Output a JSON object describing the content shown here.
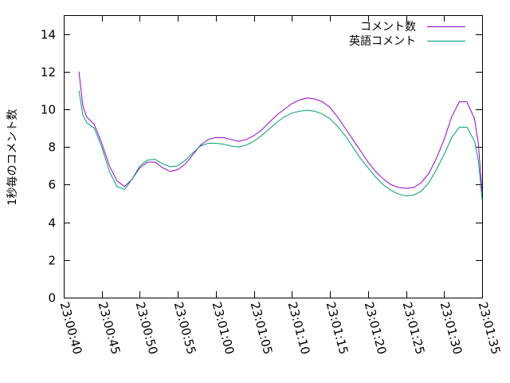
{
  "chart_data": {
    "type": "line",
    "title": "",
    "xlabel": "",
    "ylabel": "1秒毎のコメント数",
    "ylim": [
      0,
      15
    ],
    "yticks": [
      0,
      2,
      4,
      6,
      8,
      10,
      12,
      14
    ],
    "xlim": [
      "23:00:40",
      "23:01:35"
    ],
    "xticks": [
      "23:00:40",
      "23:00:45",
      "23:00:50",
      "23:00:55",
      "23:01:00",
      "23:01:05",
      "23:01:10",
      "23:01:15",
      "23:01:20",
      "23:01:25",
      "23:01:30",
      "23:01:35"
    ],
    "grid": false,
    "legend_position": "top-right",
    "series": [
      {
        "name": "コメント数",
        "color": "#9400d3",
        "x": [
          "23:00:42",
          "23:00:42.5",
          "23:00:43",
          "23:00:44",
          "23:00:45",
          "23:00:46",
          "23:00:47",
          "23:00:48",
          "23:00:49",
          "23:00:50",
          "23:00:51",
          "23:00:52",
          "23:00:53",
          "23:00:54",
          "23:00:55",
          "23:00:56",
          "23:00:57",
          "23:00:58",
          "23:00:59",
          "23:01:00",
          "23:01:01",
          "23:01:02",
          "23:01:03",
          "23:01:04",
          "23:01:05",
          "23:01:06",
          "23:01:07",
          "23:01:08",
          "23:01:09",
          "23:01:10",
          "23:01:11",
          "23:01:12",
          "23:01:13",
          "23:01:14",
          "23:01:15",
          "23:01:16",
          "23:01:17",
          "23:01:18",
          "23:01:19",
          "23:01:20",
          "23:01:21",
          "23:01:22",
          "23:01:23",
          "23:01:24",
          "23:01:25",
          "23:01:26",
          "23:01:27",
          "23:01:28",
          "23:01:29",
          "23:01:30",
          "23:01:31",
          "23:01:32",
          "23:01:33",
          "23:01:34",
          "23:01:34.5",
          "23:01:35"
        ],
        "y": [
          12.0,
          10.2,
          9.6,
          9.2,
          8.2,
          7.0,
          6.2,
          5.9,
          6.3,
          6.9,
          7.2,
          7.2,
          6.9,
          6.7,
          6.8,
          7.1,
          7.6,
          8.1,
          8.4,
          8.5,
          8.5,
          8.4,
          8.3,
          8.4,
          8.6,
          8.9,
          9.3,
          9.7,
          10.0,
          10.3,
          10.5,
          10.6,
          10.55,
          10.4,
          10.1,
          9.6,
          9.0,
          8.4,
          7.8,
          7.2,
          6.7,
          6.3,
          6.0,
          5.85,
          5.8,
          5.85,
          6.1,
          6.6,
          7.4,
          8.4,
          9.6,
          10.4,
          10.4,
          9.5,
          8.2,
          5.6
        ]
      },
      {
        "name": "英語コメント",
        "color": "#009e73",
        "x": [
          "23:00:42",
          "23:00:42.5",
          "23:00:43",
          "23:00:44",
          "23:00:45",
          "23:00:46",
          "23:00:47",
          "23:00:48",
          "23:00:49",
          "23:00:50",
          "23:00:51",
          "23:00:52",
          "23:00:53",
          "23:00:54",
          "23:00:55",
          "23:00:56",
          "23:00:57",
          "23:00:58",
          "23:00:59",
          "23:01:00",
          "23:01:01",
          "23:01:02",
          "23:01:03",
          "23:01:04",
          "23:01:05",
          "23:01:06",
          "23:01:07",
          "23:01:08",
          "23:01:09",
          "23:01:10",
          "23:01:11",
          "23:01:12",
          "23:01:13",
          "23:01:14",
          "23:01:15",
          "23:01:16",
          "23:01:17",
          "23:01:18",
          "23:01:19",
          "23:01:20",
          "23:01:21",
          "23:01:22",
          "23:01:23",
          "23:01:24",
          "23:01:25",
          "23:01:26",
          "23:01:27",
          "23:01:28",
          "23:01:29",
          "23:01:30",
          "23:01:31",
          "23:01:32",
          "23:01:33",
          "23:01:34",
          "23:01:34.5",
          "23:01:35"
        ],
        "y": [
          11.0,
          9.7,
          9.3,
          9.0,
          8.0,
          6.7,
          5.9,
          5.75,
          6.3,
          7.0,
          7.3,
          7.35,
          7.1,
          6.95,
          7.0,
          7.3,
          7.7,
          8.05,
          8.2,
          8.2,
          8.15,
          8.05,
          8.0,
          8.1,
          8.3,
          8.6,
          8.95,
          9.3,
          9.6,
          9.8,
          9.9,
          9.95,
          9.9,
          9.75,
          9.5,
          9.1,
          8.6,
          8.0,
          7.4,
          6.9,
          6.4,
          6.0,
          5.7,
          5.5,
          5.4,
          5.45,
          5.65,
          6.1,
          6.8,
          7.6,
          8.5,
          9.05,
          9.05,
          8.3,
          7.3,
          5.2
        ]
      }
    ]
  }
}
